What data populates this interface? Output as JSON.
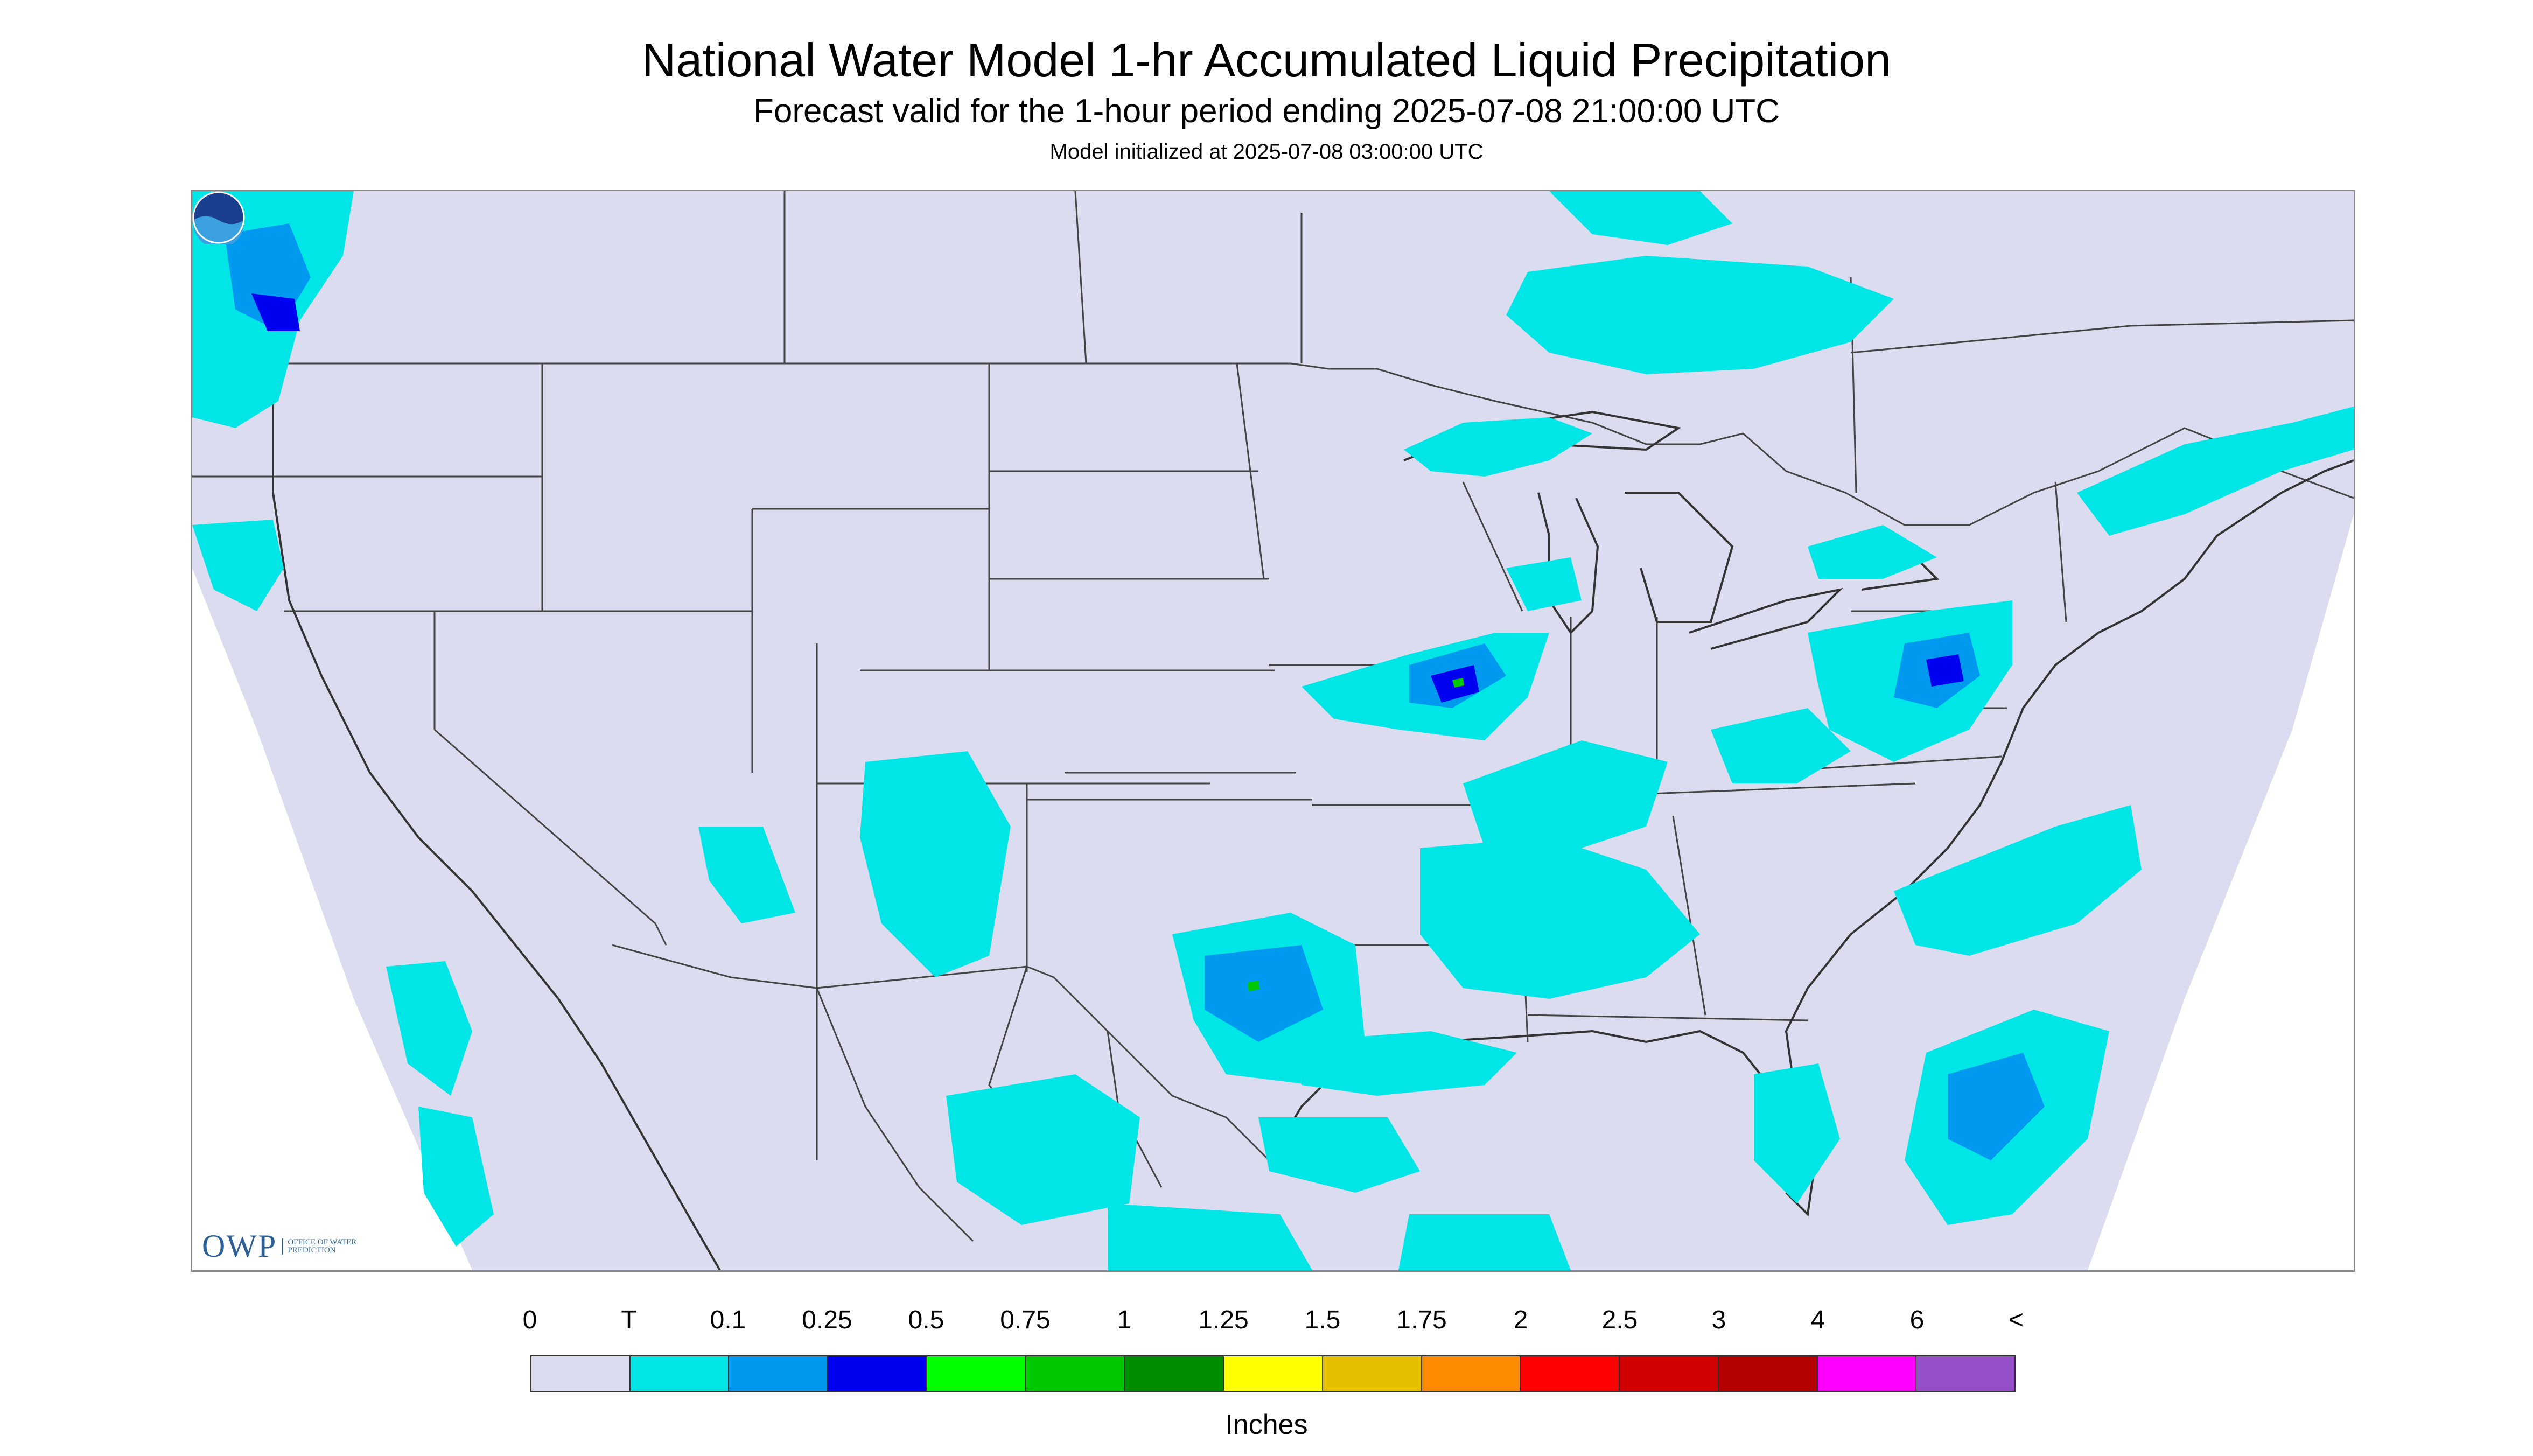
{
  "header": {
    "title": "National Water Model 1-hr Accumulated Liquid Precipitation",
    "subtitle": "Forecast valid for the 1-hour period ending 2025-07-08 21:00:00 UTC",
    "init": "Model initialized at 2025-07-08 03:00:00 UTC"
  },
  "logos": {
    "owp_big": "OWP",
    "owp_small": "OFFICE OF WATER PREDICTION",
    "noaa": "NOAA"
  },
  "legend": {
    "labels": [
      "0",
      "T",
      "0.1",
      "0.25",
      "0.5",
      "0.75",
      "1",
      "1.25",
      "1.5",
      "1.75",
      "2",
      "2.5",
      "3",
      "4",
      "6",
      "<"
    ],
    "colors": [
      "#dcdcf0",
      "#00e6e6",
      "#0099f0",
      "#0000f0",
      "#00ff00",
      "#00c800",
      "#008c00",
      "#ffff00",
      "#e6be00",
      "#ff8c00",
      "#ff0000",
      "#d20000",
      "#b40000",
      "#ff00ff",
      "#9650c8"
    ],
    "units": "Inches"
  },
  "map_colors": {
    "background": "#dcdcf0",
    "outside": "#ffffff",
    "borders": "#444444",
    "trace": "#00e6e6",
    "light": "#0099f0",
    "moderate": "#0000f0",
    "heavy": "#00c800"
  }
}
